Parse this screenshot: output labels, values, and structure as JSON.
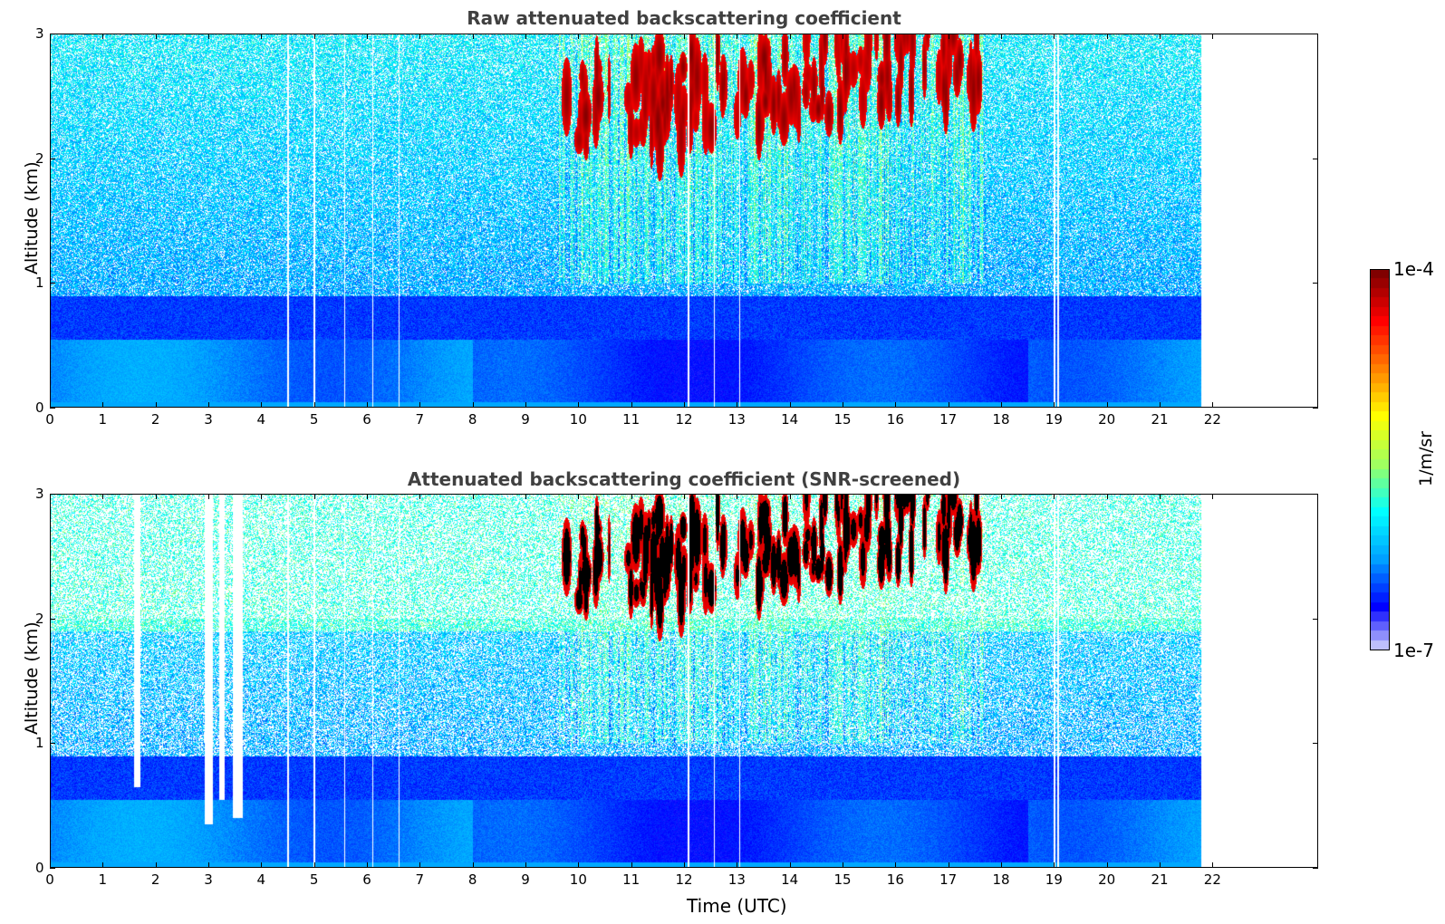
{
  "chart_data": [
    {
      "type": "heatmap",
      "title": "Raw attenuated backscattering coefficient",
      "xlabel": "",
      "ylabel": "Altitude (km)",
      "xlim": [
        0,
        24
      ],
      "ylim": [
        0,
        3
      ],
      "xticks": [
        "0",
        "1",
        "2",
        "3",
        "4",
        "5",
        "6",
        "7",
        "8",
        "9",
        "10",
        "11",
        "12",
        "13",
        "14",
        "15",
        "16",
        "17",
        "18",
        "19",
        "20",
        "21",
        "22"
      ],
      "yticks": [
        "0",
        "1",
        "2",
        "3"
      ],
      "data_end_time_utc": 21.8,
      "colorscale": "jet",
      "scale": "log",
      "features": {
        "boundary_layer_top_km": 0.9,
        "cloud_layer_km": [
          2.0,
          3.0
        ],
        "cloud_period_utc": [
          9.7,
          17.6
        ],
        "snr_screened": false
      }
    },
    {
      "type": "heatmap",
      "title": "Attenuated backscattering coefficient (SNR-screened)",
      "xlabel": "Time (UTC)",
      "ylabel": "Altitude (km)",
      "xlim": [
        0,
        24
      ],
      "ylim": [
        0,
        3
      ],
      "xticks": [
        "0",
        "1",
        "2",
        "3",
        "4",
        "5",
        "6",
        "7",
        "8",
        "9",
        "10",
        "11",
        "12",
        "13",
        "14",
        "15",
        "16",
        "17",
        "18",
        "19",
        "20",
        "21",
        "22"
      ],
      "yticks": [
        "0",
        "1",
        "2",
        "3"
      ],
      "data_end_time_utc": 21.8,
      "colorscale": "jet",
      "scale": "log",
      "features": {
        "boundary_layer_top_km": 0.9,
        "cloud_layer_km": [
          2.0,
          3.0
        ],
        "cloud_period_utc": [
          9.7,
          17.6
        ],
        "snr_screened": true
      }
    }
  ],
  "colorbar": {
    "max_label": "1e-4",
    "min_label": "1e-7",
    "unit": "1/m/sr",
    "vmin": 1e-07,
    "vmax": 0.0001,
    "colors": [
      "#eef0fb",
      "#0000ff",
      "#00a0ff",
      "#00ffff",
      "#a0ff60",
      "#ffff00",
      "#ff8000",
      "#ff0000",
      "#800000"
    ]
  }
}
